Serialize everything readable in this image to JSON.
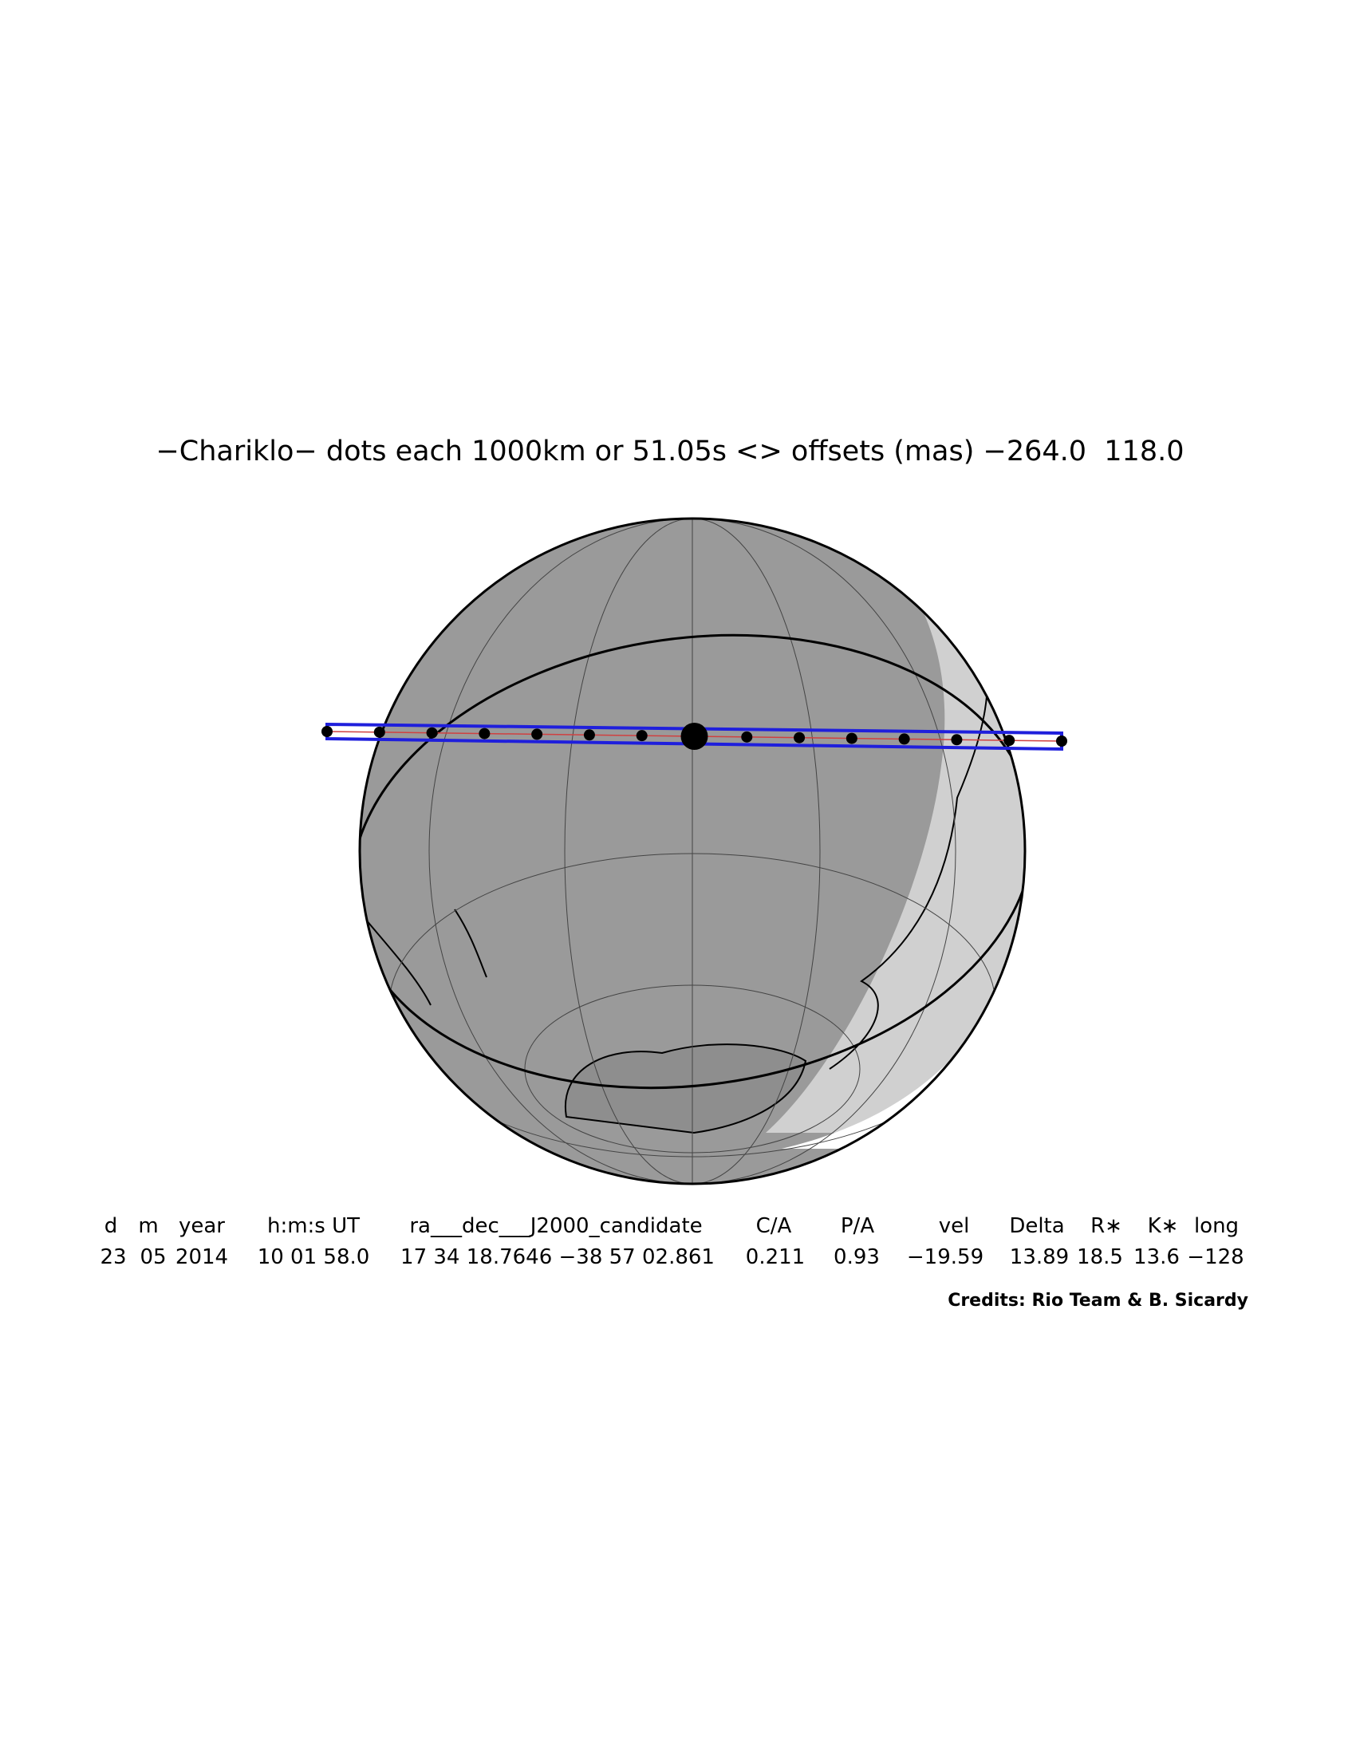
{
  "title": "−Chariklo− dots each 1000km or 51.05s <> offsets (mas) −264.0  118.0",
  "table": {
    "header": [
      "d",
      "m",
      "year",
      "h:m:s UT",
      "ra___dec___J2000_candidate",
      "C/A",
      "P/A",
      "vel",
      "Delta",
      "R∗",
      "K∗",
      "long"
    ],
    "rows": [
      [
        "23",
        "05",
        "2014",
        "10 01 58.0",
        "17 34 18.7646 −38 57 02.861",
        "0.211",
        "0.93",
        "−19.59",
        "13.89",
        "18.5",
        "13.6",
        "−128"
      ]
    ]
  },
  "credits": "Credits: Rio Team & B. Sicardy"
}
